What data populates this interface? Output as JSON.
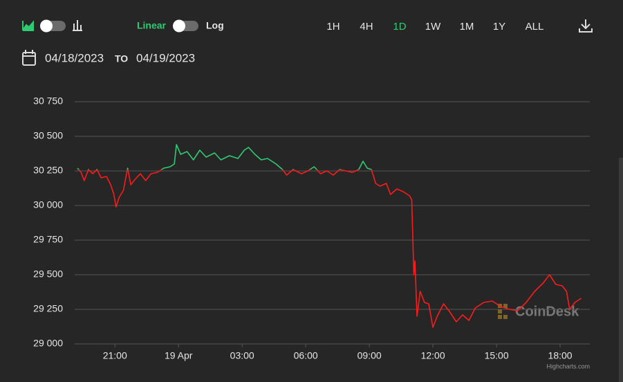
{
  "toolbar": {
    "scale_options": [
      "Linear",
      "Log"
    ],
    "active_scale": 0,
    "ranges": [
      "1H",
      "4H",
      "1D",
      "1W",
      "1M",
      "1Y",
      "ALL"
    ],
    "active_range": 2
  },
  "date_range": {
    "from": "04/18/2023",
    "separator": "TO",
    "to": "04/19/2023"
  },
  "watermark": "CoinDesk",
  "credit": "Highcharts.com",
  "chart_data": {
    "type": "line",
    "x": [
      19.23,
      19.4,
      19.55,
      19.75,
      19.95,
      20.15,
      20.35,
      20.6,
      20.8,
      20.95,
      21.05,
      21.2,
      21.4,
      21.6,
      21.75,
      21.95,
      22.2,
      22.45,
      22.7,
      23.0,
      23.3,
      23.6,
      23.8,
      23.9,
      24.1,
      24.4,
      24.7,
      25.0,
      25.3,
      25.7,
      26.0,
      26.4,
      26.8,
      27.1,
      27.3,
      27.6,
      27.9,
      28.2,
      28.6,
      28.9,
      29.1,
      29.4,
      29.8,
      30.1,
      30.4,
      30.7,
      31.0,
      31.3,
      31.6,
      31.9,
      32.2,
      32.5,
      32.7,
      32.9,
      33.1,
      33.3,
      33.5,
      33.8,
      34.0,
      34.3,
      34.6,
      34.9,
      35.0,
      35.1,
      35.15,
      35.25,
      35.4,
      35.6,
      35.8,
      36.0,
      36.2,
      36.5,
      36.8,
      37.1,
      37.4,
      37.7,
      38.0,
      38.4,
      38.8,
      39.2,
      39.6,
      40.0,
      40.4,
      40.8,
      41.2,
      41.5,
      41.8,
      42.1,
      42.3,
      42.45,
      42.7,
      43.0
    ],
    "series": [
      {
        "color": "#ff1a1a",
        "values": [
          30270,
          30240,
          30180,
          30260,
          30230,
          30260,
          30200,
          30210,
          30150,
          30080,
          29990,
          30060,
          30110,
          30270,
          30150,
          30190,
          30230,
          30180,
          30230,
          30240,
          30270,
          30280,
          30300,
          30440,
          30370,
          30390,
          30330,
          30400,
          30350,
          30380,
          30330,
          30360,
          30340,
          30400,
          30420,
          30370,
          30330,
          30340,
          30300,
          30260,
          30220,
          30260,
          30230,
          30250,
          30280,
          30230,
          30250,
          30220,
          30260,
          30250,
          30240,
          30260,
          30320,
          30270,
          30260,
          30160,
          30140,
          30160,
          30080,
          30120,
          30100,
          30070,
          30040,
          29500,
          29600,
          29200,
          29380,
          29300,
          29290,
          29120,
          29200,
          29290,
          29230,
          29160,
          29210,
          29170,
          29260,
          29300,
          29310,
          29270,
          29250,
          29240,
          29300,
          29380,
          29440,
          29500,
          29430,
          29420,
          29380,
          29250,
          29300,
          29330
        ]
      }
    ],
    "threshold": 30260,
    "threshold_color": "#2ecc71",
    "xlim": [
      19.1,
      43.4
    ],
    "xticks": [
      {
        "value": 21,
        "label": "21:00"
      },
      {
        "value": 24,
        "label": "19 Apr"
      },
      {
        "value": 27,
        "label": "03:00"
      },
      {
        "value": 30,
        "label": "06:00"
      },
      {
        "value": 33,
        "label": "09:00"
      },
      {
        "value": 36,
        "label": "12:00"
      },
      {
        "value": 39,
        "label": "15:00"
      },
      {
        "value": 42,
        "label": "18:00"
      }
    ],
    "ylim": [
      29000,
      30750
    ],
    "yticks": [
      {
        "value": 29000,
        "label": "29 000"
      },
      {
        "value": 29250,
        "label": "29 250"
      },
      {
        "value": 29500,
        "label": "29 500"
      },
      {
        "value": 29750,
        "label": "29 750"
      },
      {
        "value": 30000,
        "label": "30 000"
      },
      {
        "value": 30250,
        "label": "30 250"
      },
      {
        "value": 30500,
        "label": "30 500"
      },
      {
        "value": 30750,
        "label": "30 750"
      }
    ],
    "grid": true
  }
}
